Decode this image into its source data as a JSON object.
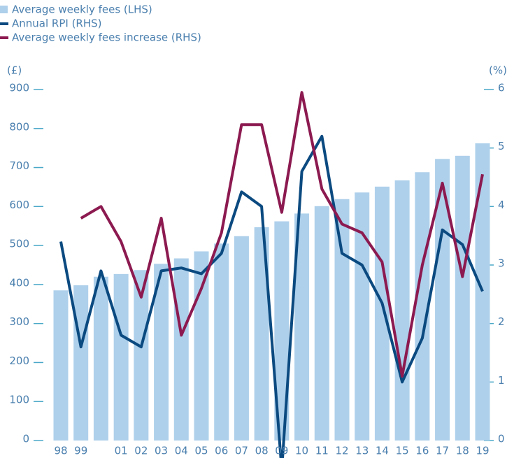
{
  "chart_data": {
    "type": "bar_line",
    "categories": [
      "98",
      "99",
      null,
      "01",
      "02",
      "03",
      "04",
      "05",
      "06",
      "07",
      "08",
      "09",
      "10",
      "11",
      "12",
      "13",
      "14",
      "15",
      "16",
      "17",
      "18",
      "19"
    ],
    "series": [
      {
        "name": "Average weekly fees (LHS)",
        "color": "#aed0eb",
        "type": "bar",
        "values": [
          385,
          398,
          420,
          427,
          437,
          453,
          467,
          485,
          505,
          524,
          547,
          562,
          582,
          601,
          619,
          636,
          651,
          667,
          688,
          722,
          730,
          762
        ]
      },
      {
        "name": "Annual RPI (RHS)",
        "color": "#0b4a80",
        "type": "line",
        "axis": "y2",
        "values": [
          3.4,
          1.6,
          2.9,
          1.8,
          1.6,
          2.9,
          2.95,
          2.85,
          3.2,
          4.25,
          4.0,
          -0.5,
          4.6,
          5.2,
          3.2,
          3.0,
          2.35,
          1.0,
          1.75,
          3.6,
          3.35,
          2.55
        ]
      },
      {
        "name": "Average weekly fees increase (RHS)",
        "color": "#8c1a50",
        "type": "line",
        "axis": "y2",
        "values": [
          null,
          3.8,
          4.0,
          3.4,
          2.45,
          3.8,
          1.8,
          2.6,
          3.55,
          5.4,
          5.4,
          3.9,
          5.95,
          4.3,
          3.7,
          3.55,
          3.05,
          1.1,
          3.0,
          4.4,
          2.8,
          4.55
        ]
      }
    ],
    "y_label": "(£)",
    "y2_label": "(%)",
    "ylim": [
      0,
      900
    ],
    "yticks": [
      0,
      100,
      200,
      300,
      400,
      500,
      600,
      700,
      800,
      900
    ],
    "y2lim": [
      0,
      6
    ],
    "y2ticks": [
      0,
      1,
      2,
      3,
      4,
      5,
      6
    ],
    "legend": "top-left"
  }
}
